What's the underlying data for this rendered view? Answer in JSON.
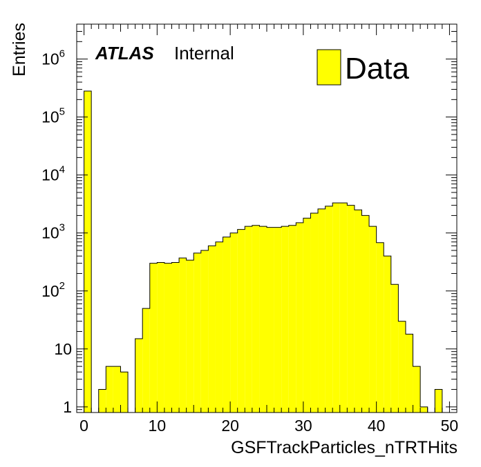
{
  "chart_data": {
    "type": "bar",
    "ylabel": "Entries",
    "xlabel": "GSFTrackParticles_nTRTHits",
    "yscale": "log",
    "ylim": [
      0.8,
      4000000
    ],
    "xlim": [
      -1,
      51
    ],
    "bin_width": 1,
    "x_ticks": [
      0,
      10,
      20,
      30,
      40,
      50
    ],
    "y_ticks": [
      {
        "value": 1,
        "base": "1",
        "exp": ""
      },
      {
        "value": 10,
        "base": "10",
        "exp": ""
      },
      {
        "value": 100,
        "base": "10",
        "exp": "2"
      },
      {
        "value": 1000,
        "base": "10",
        "exp": "3"
      },
      {
        "value": 10000,
        "base": "10",
        "exp": "4"
      },
      {
        "value": 100000,
        "base": "10",
        "exp": "5"
      },
      {
        "value": 1000000,
        "base": "10",
        "exp": "6"
      }
    ],
    "bins": [
      -1,
      0,
      1,
      2,
      3,
      4,
      5,
      6,
      7,
      8,
      9,
      10,
      11,
      12,
      13,
      14,
      15,
      16,
      17,
      18,
      19,
      20,
      21,
      22,
      23,
      24,
      25,
      26,
      27,
      28,
      29,
      30,
      31,
      32,
      33,
      34,
      35,
      36,
      37,
      38,
      39,
      40,
      41,
      42,
      43,
      44,
      45,
      46,
      47,
      48,
      49,
      50
    ],
    "series": [
      {
        "name": "Data",
        "color": "#ffff00",
        "values": [
          0,
          280000,
          0,
          2,
          5,
          5,
          4,
          0,
          15,
          50,
          300,
          310,
          300,
          310,
          370,
          340,
          450,
          500,
          600,
          700,
          850,
          1000,
          1150,
          1300,
          1350,
          1300,
          1250,
          1250,
          1300,
          1350,
          1500,
          1800,
          2200,
          2600,
          2900,
          3300,
          3300,
          3000,
          2500,
          2000,
          1300,
          680,
          400,
          130,
          30,
          18,
          5,
          1,
          0,
          2,
          0,
          0
        ]
      }
    ],
    "annotations": {
      "atlas": "ATLAS",
      "internal": "Internal"
    },
    "legend": {
      "position": "top-right",
      "label": "Data"
    }
  }
}
